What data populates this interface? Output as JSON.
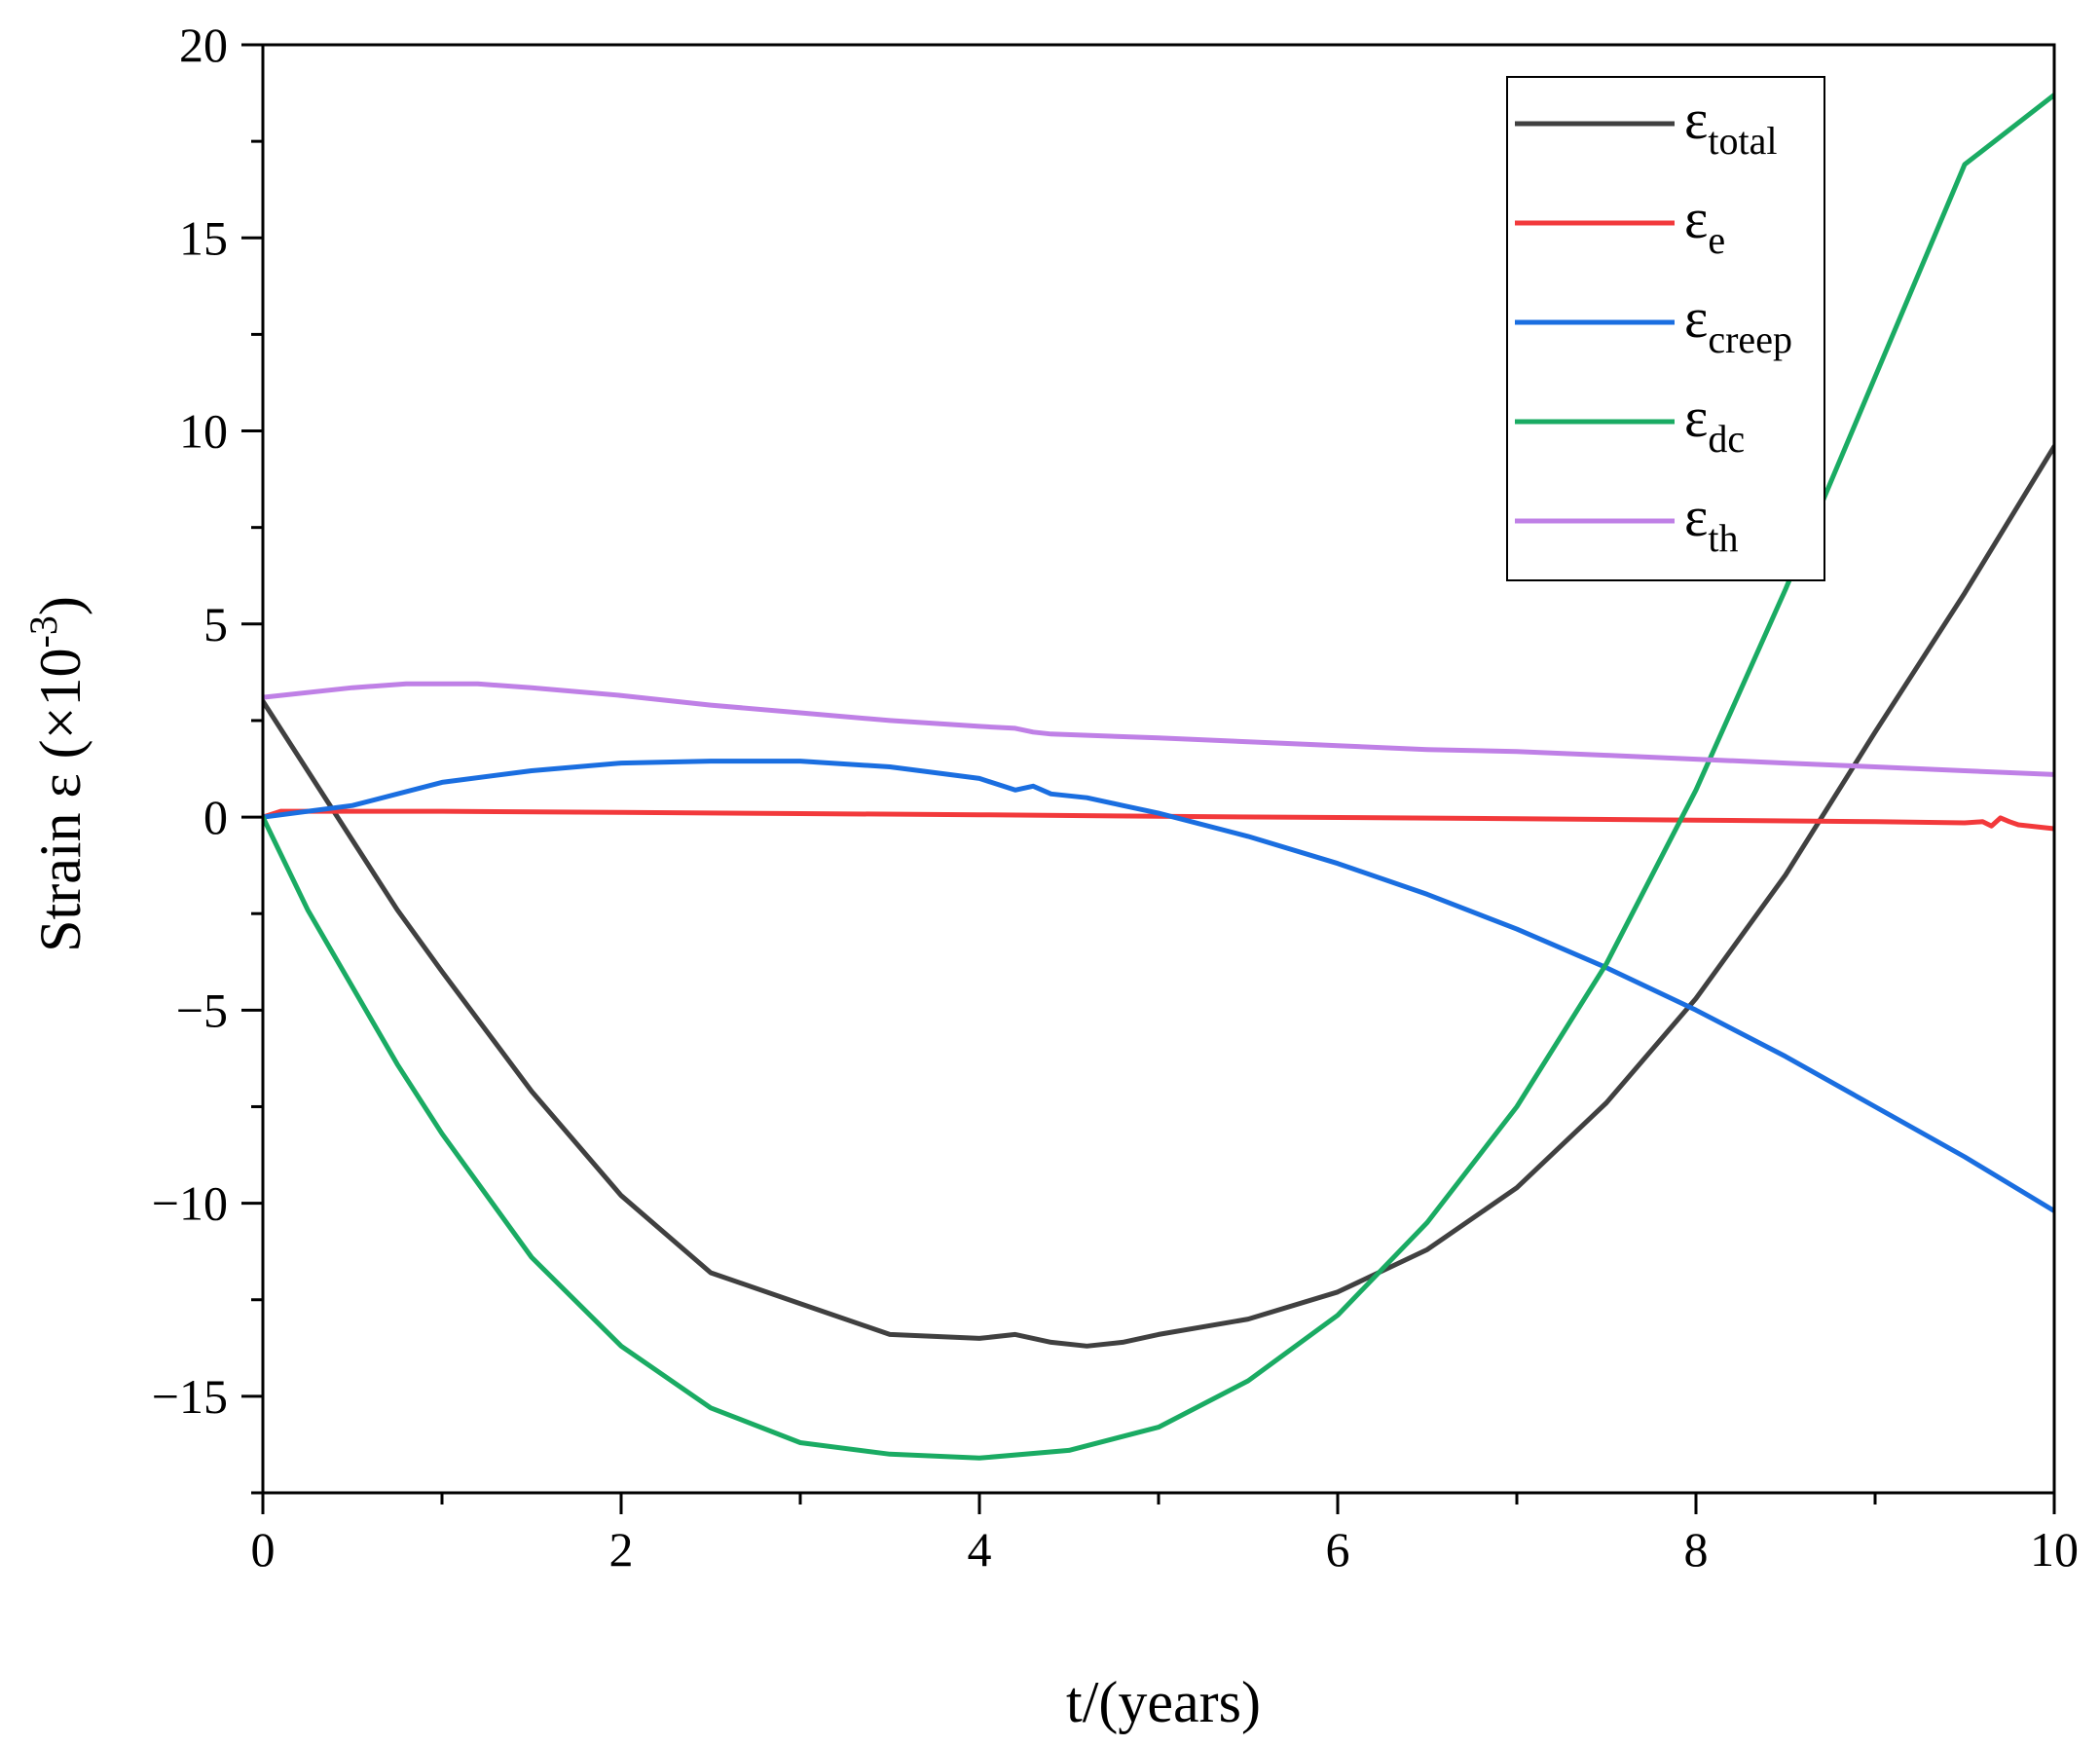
{
  "chart_data": {
    "type": "line",
    "title": "",
    "xlabel": "t/(years)",
    "ylabel": {
      "main": "Strain ε (×10",
      "superscript": "-3",
      "close": ")"
    },
    "xlim": [
      0,
      10
    ],
    "ylim": [
      -17.5,
      20
    ],
    "x_ticks": [
      0,
      2,
      4,
      6,
      8,
      10
    ],
    "x_tick_labels": [
      "0",
      "2",
      "4",
      "6",
      "8",
      "10"
    ],
    "y_ticks": [
      -15,
      -10,
      -5,
      0,
      5,
      10,
      15,
      20
    ],
    "y_tick_labels": [
      "−15",
      "−10",
      "−5",
      "0",
      "5",
      "10",
      "15",
      "20"
    ],
    "grid": false,
    "legend_position": "top-right",
    "series": [
      {
        "name": "total",
        "base": "ε",
        "sub": "total",
        "color": "#404040",
        "x": [
          0,
          0.25,
          0.5,
          0.75,
          1,
          1.5,
          2,
          2.5,
          3,
          3.5,
          4,
          4.2,
          4.3,
          4.4,
          4.6,
          4.8,
          5,
          5.5,
          6,
          6.5,
          7,
          7.5,
          8,
          8.5,
          9,
          9.5,
          10
        ],
        "values": [
          3.0,
          1.2,
          -0.6,
          -2.4,
          -4.0,
          -7.1,
          -9.8,
          -11.8,
          -12.6,
          -13.4,
          -13.5,
          -13.4,
          -13.5,
          -13.6,
          -13.7,
          -13.6,
          -13.4,
          -13.0,
          -12.3,
          -11.2,
          -9.6,
          -7.4,
          -4.7,
          -1.5,
          2.2,
          5.8,
          9.6
        ]
      },
      {
        "name": "e",
        "base": "ε",
        "sub": "e",
        "color": "#f2393b",
        "x": [
          0,
          0.1,
          1,
          2,
          3,
          4,
          5,
          6,
          7,
          8,
          9,
          9.5,
          9.6,
          9.65,
          9.7,
          9.75,
          9.8,
          10
        ],
        "values": [
          0.0,
          0.15,
          0.15,
          0.12,
          0.09,
          0.06,
          0.02,
          -0.01,
          -0.04,
          -0.08,
          -0.12,
          -0.15,
          -0.12,
          -0.23,
          -0.02,
          -0.12,
          -0.2,
          -0.3
        ]
      },
      {
        "name": "creep",
        "base": "ε",
        "sub": "creep",
        "color": "#1a6ee0",
        "x": [
          0,
          0.5,
          1,
          1.5,
          2,
          2.5,
          3,
          3.5,
          4,
          4.2,
          4.3,
          4.4,
          4.6,
          4.8,
          5,
          5.5,
          6,
          6.5,
          7,
          7.5,
          8,
          8.5,
          9,
          9.5,
          10
        ],
        "values": [
          0.0,
          0.3,
          0.9,
          1.2,
          1.4,
          1.45,
          1.45,
          1.3,
          1.0,
          0.7,
          0.8,
          0.6,
          0.5,
          0.3,
          0.1,
          -0.5,
          -1.2,
          -2.0,
          -2.9,
          -3.9,
          -5.0,
          -6.2,
          -7.5,
          -8.8,
          -10.2
        ]
      },
      {
        "name": "dc",
        "base": "ε",
        "sub": "dc",
        "color": "#1aab63",
        "x": [
          0,
          0.25,
          0.5,
          0.75,
          1,
          1.5,
          2,
          2.5,
          3,
          3.5,
          4,
          4.5,
          5,
          5.5,
          6,
          6.5,
          7,
          7.5,
          8,
          8.5,
          9,
          9.5,
          10
        ],
        "values": [
          0.0,
          -2.4,
          -4.4,
          -6.4,
          -8.2,
          -11.4,
          -13.7,
          -15.3,
          -16.2,
          -16.5,
          -16.6,
          -16.4,
          -15.8,
          -14.6,
          -12.9,
          -10.5,
          -7.5,
          -3.8,
          0.7,
          5.9,
          11.4,
          16.9,
          18.7
        ]
      },
      {
        "name": "th",
        "base": "ε",
        "sub": "th",
        "color": "#bf80e6",
        "x": [
          0,
          0.5,
          0.8,
          1,
          1.2,
          1.5,
          2,
          2.5,
          3,
          3.5,
          4,
          4.2,
          4.3,
          4.4,
          5,
          5.5,
          6,
          6.5,
          7,
          7.5,
          8,
          8.5,
          9,
          9.5,
          10
        ],
        "values": [
          3.1,
          3.35,
          3.45,
          3.45,
          3.45,
          3.35,
          3.15,
          2.9,
          2.7,
          2.5,
          2.35,
          2.3,
          2.2,
          2.15,
          2.05,
          1.95,
          1.85,
          1.75,
          1.7,
          1.6,
          1.5,
          1.4,
          1.3,
          1.2,
          1.1
        ]
      }
    ]
  }
}
